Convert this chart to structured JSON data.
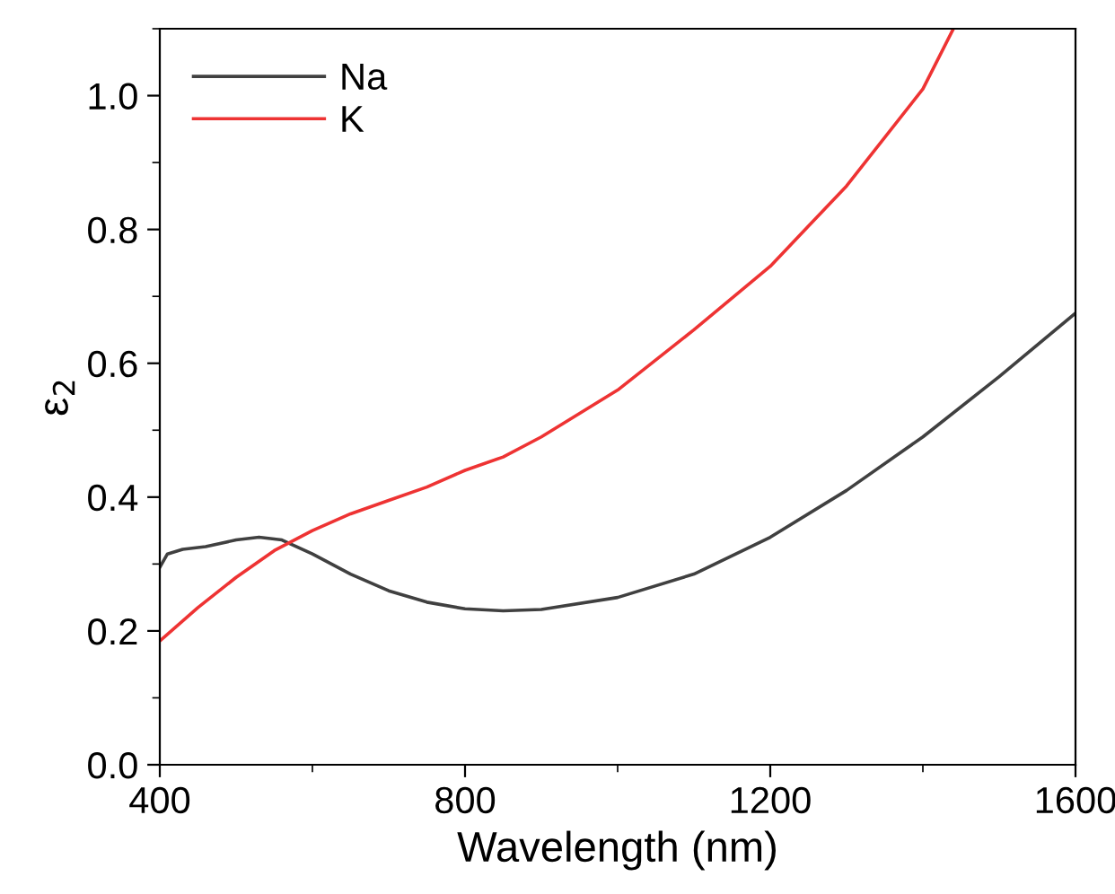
{
  "chart_data": {
    "type": "line",
    "xlabel": "Wavelength (nm)",
    "ylabel": "ε$_{2}$",
    "xlim": [
      400,
      1600
    ],
    "ylim": [
      0,
      1.1
    ],
    "xticks": [
      400,
      800,
      1200,
      1600
    ],
    "yticks": [
      {
        "value": 0,
        "label": "0.0"
      },
      0.2,
      0.4,
      0.6,
      0.8,
      {
        "value": 1,
        "label": "1.0"
      }
    ],
    "legend": "top left",
    "grid": false,
    "series": [
      {
        "name": "Na",
        "color": "#404040",
        "x": [
          400,
          410,
          430,
          460,
          500,
          530,
          560,
          600,
          650,
          700,
          750,
          800,
          850,
          900,
          1000,
          1100,
          1200,
          1300,
          1400,
          1500,
          1600
        ],
        "values": [
          0.295,
          0.315,
          0.322,
          0.326,
          0.336,
          0.34,
          0.336,
          0.315,
          0.285,
          0.26,
          0.243,
          0.233,
          0.23,
          0.232,
          0.25,
          0.285,
          0.34,
          0.41,
          0.49,
          0.58,
          0.675
        ]
      },
      {
        "name": "K",
        "color": "#ee3333",
        "x": [
          400,
          450,
          500,
          550,
          600,
          650,
          700,
          750,
          800,
          850,
          900,
          1000,
          1100,
          1200,
          1300,
          1400,
          1440
        ],
        "values": [
          0.185,
          0.235,
          0.28,
          0.32,
          0.35,
          0.375,
          0.395,
          0.415,
          0.44,
          0.46,
          0.49,
          0.56,
          0.65,
          0.745,
          0.865,
          1.01,
          1.1
        ]
      }
    ]
  }
}
